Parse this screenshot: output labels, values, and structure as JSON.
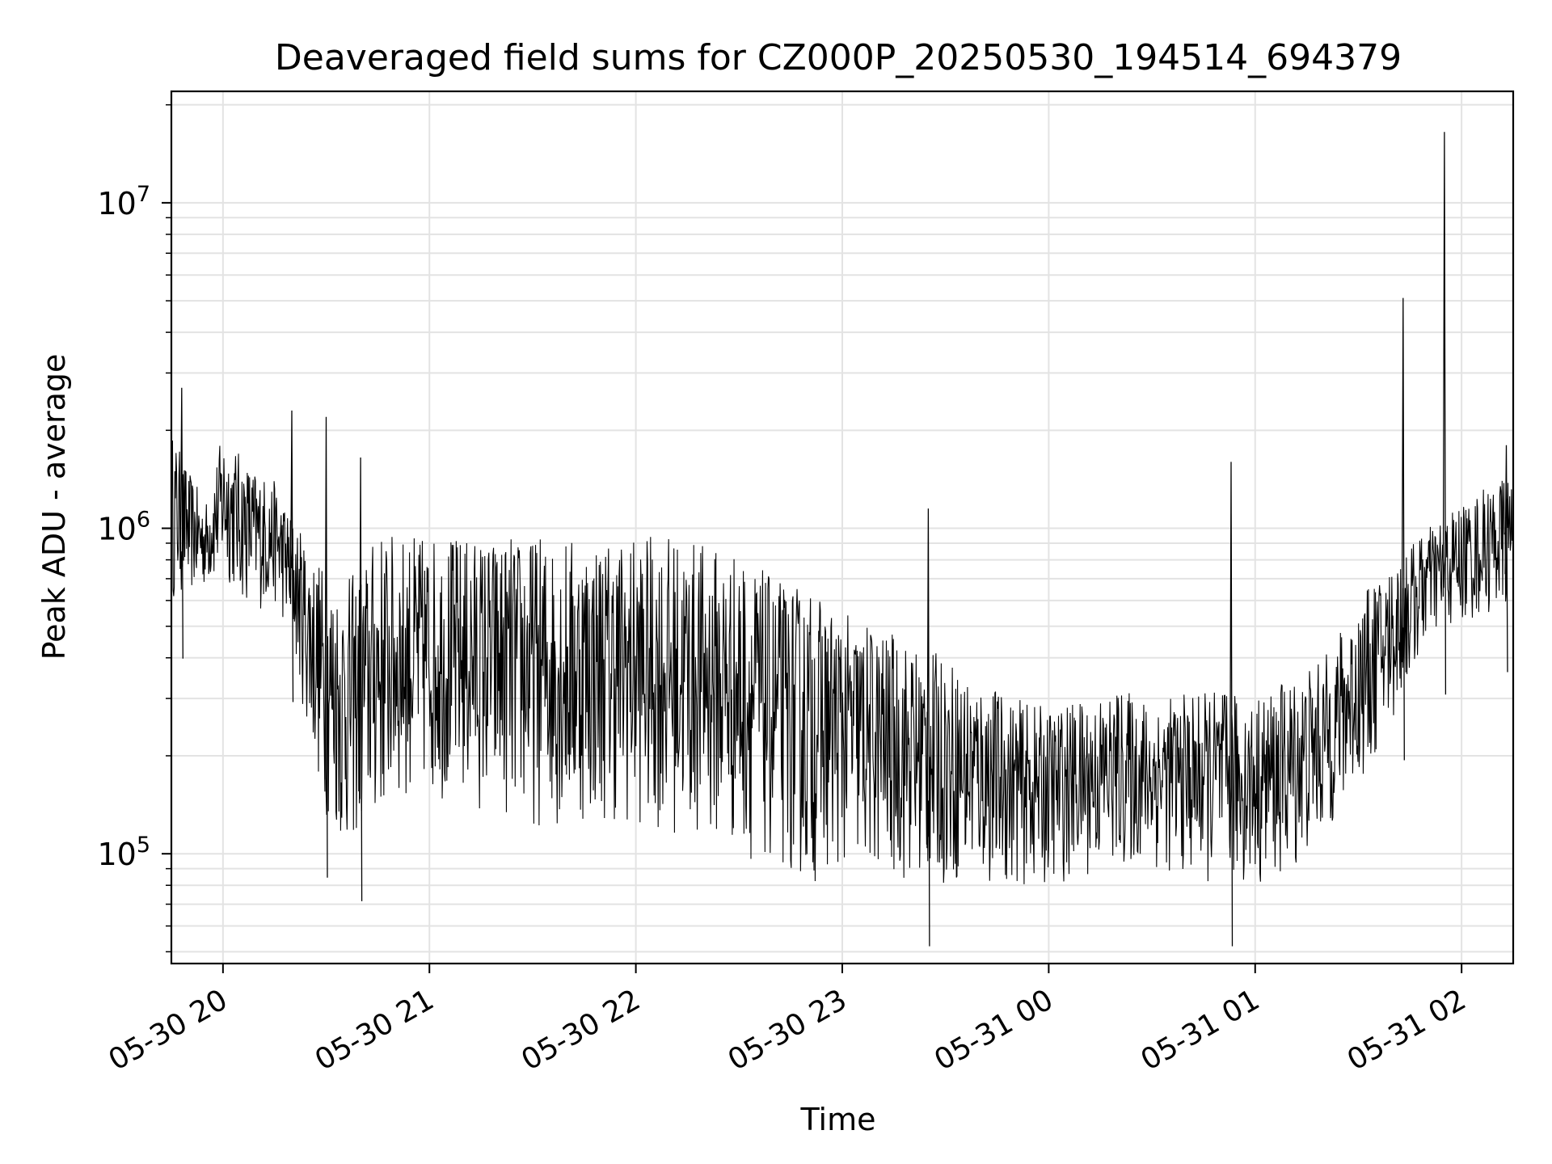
{
  "chart_data": {
    "type": "line",
    "title": "Deaveraged field sums for CZ000P_20250530_194514_694379",
    "xlabel": "Time",
    "ylabel": "Peak ADU - average",
    "yscale": "log",
    "ylim": [
      46000,
      22000000
    ],
    "xlim": [
      "2025-05-30 19:45",
      "2025-05-31 02:15"
    ],
    "x_ticks": [
      {
        "value": "2025-05-30 20:00",
        "label": "05-30 20"
      },
      {
        "value": "2025-05-30 21:00",
        "label": "05-30 21"
      },
      {
        "value": "2025-05-30 22:00",
        "label": "05-30 22"
      },
      {
        "value": "2025-05-30 23:00",
        "label": "05-30 23"
      },
      {
        "value": "2025-05-31 00:00",
        "label": "05-31 00"
      },
      {
        "value": "2025-05-31 01:00",
        "label": "05-31 01"
      },
      {
        "value": "2025-05-31 02:00",
        "label": "05-31 02"
      }
    ],
    "y_ticks": [
      {
        "value": 100000,
        "label": "10",
        "exponent": "5"
      },
      {
        "value": 1000000,
        "label": "10",
        "exponent": "6"
      },
      {
        "value": 10000000,
        "label": "10",
        "exponent": "7"
      }
    ],
    "grid": true,
    "line_color": "#000000",
    "series": [
      {
        "description_free": true,
        "x": [
          "2025-05-30 19:45",
          "2025-05-30 19:50",
          "2025-05-30 19:55",
          "2025-05-30 20:00",
          "2025-05-30 20:05",
          "2025-05-30 20:10",
          "2025-05-30 20:15",
          "2025-05-30 20:20",
          "2025-05-30 20:25",
          "2025-05-30 20:30",
          "2025-05-30 20:35",
          "2025-05-30 20:40",
          "2025-05-30 20:45",
          "2025-05-30 20:50",
          "2025-05-30 20:55",
          "2025-05-30 21:00",
          "2025-05-30 21:10",
          "2025-05-30 21:20",
          "2025-05-30 21:30",
          "2025-05-30 21:40",
          "2025-05-30 21:50",
          "2025-05-30 22:00",
          "2025-05-30 22:10",
          "2025-05-30 22:20",
          "2025-05-30 22:30",
          "2025-05-30 22:40",
          "2025-05-30 22:50",
          "2025-05-30 23:00",
          "2025-05-30 23:10",
          "2025-05-30 23:20",
          "2025-05-30 23:30",
          "2025-05-30 23:40",
          "2025-05-30 23:50",
          "2025-05-31 00:00",
          "2025-05-31 00:10",
          "2025-05-31 00:20",
          "2025-05-31 00:30",
          "2025-05-31 00:40",
          "2025-05-31 00:50",
          "2025-05-31 01:00",
          "2025-05-31 01:10",
          "2025-05-31 01:20",
          "2025-05-31 01:30",
          "2025-05-31 01:40",
          "2025-05-31 01:50",
          "2025-05-31 02:00",
          "2025-05-31 02:10",
          "2025-05-31 02:15"
        ],
        "y_low": [
          600000,
          620000,
          650000,
          700000,
          600000,
          560000,
          580000,
          450000,
          220000,
          130000,
          100000,
          110000,
          120000,
          140000,
          150000,
          150000,
          140000,
          130000,
          120000,
          120000,
          125000,
          120000,
          115000,
          110000,
          100000,
          90000,
          80000,
          90000,
          85000,
          80000,
          80000,
          80000,
          80000,
          80000,
          85000,
          90000,
          90000,
          85000,
          80000,
          80000,
          85000,
          110000,
          160000,
          250000,
          450000,
          500000,
          550000,
          560000
        ],
        "y_high": [
          2000000,
          1500000,
          1200000,
          2000000,
          1700000,
          1500000,
          1400000,
          1100000,
          900000,
          750000,
          700000,
          750000,
          1000000,
          950000,
          950000,
          950000,
          950000,
          950000,
          950000,
          950000,
          950000,
          950000,
          950000,
          900000,
          850000,
          700000,
          650000,
          550000,
          500000,
          450000,
          400000,
          350000,
          300000,
          280000,
          300000,
          320000,
          300000,
          310000,
          320000,
          300000,
          350000,
          400000,
          600000,
          800000,
          1000000,
          1200000,
          1400000,
          1500000
        ],
        "spikes": [
          {
            "x": "2025-05-31 01:55",
            "y": 16500000
          },
          {
            "x": "2025-05-31 01:43",
            "y": 5100000
          },
          {
            "x": "2025-05-30 19:48",
            "y": 2700000
          },
          {
            "x": "2025-05-30 20:20",
            "y": 2300000
          },
          {
            "x": "2025-05-30 20:30",
            "y": 2200000
          },
          {
            "x": "2025-05-31 00:53",
            "y": 1600000
          },
          {
            "x": "2025-05-30 20:40",
            "y": 1650000
          },
          {
            "x": "2025-05-30 23:25",
            "y": 1150000
          },
          {
            "x": "2025-05-31 02:13",
            "y": 1800000
          }
        ]
      }
    ]
  }
}
